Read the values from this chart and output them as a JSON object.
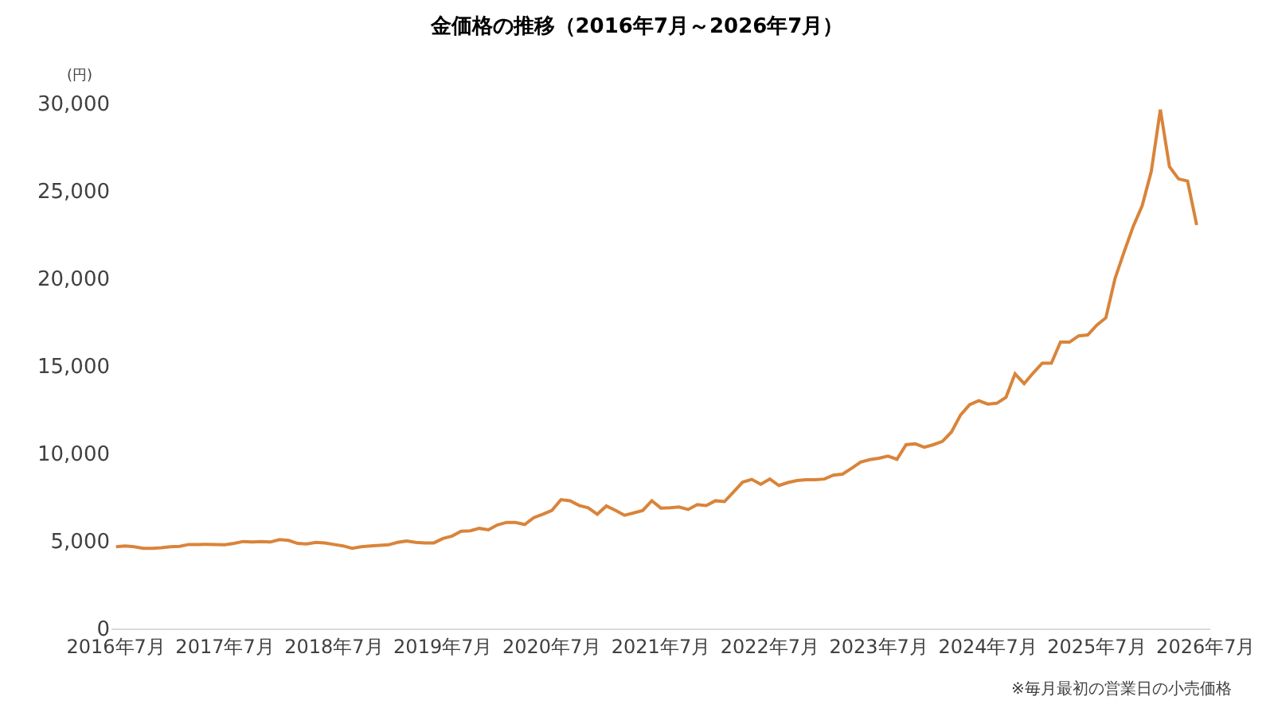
{
  "chart_data": {
    "type": "line",
    "title": "金価格の推移（2016年7月～2026年7月）",
    "ylabel": "(円)",
    "annotations": [
      "※毎月最初の営業日の小売価格"
    ],
    "categories": [
      "2016年7月",
      null,
      null,
      null,
      null,
      null,
      null,
      null,
      null,
      null,
      null,
      null,
      "2017年7月",
      null,
      null,
      null,
      null,
      null,
      null,
      null,
      null,
      null,
      null,
      null,
      "2018年7月",
      null,
      null,
      null,
      null,
      null,
      null,
      null,
      null,
      null,
      null,
      null,
      "2019年7月",
      null,
      null,
      null,
      null,
      null,
      null,
      null,
      null,
      null,
      null,
      null,
      "2020年7月",
      null,
      null,
      null,
      null,
      null,
      null,
      null,
      null,
      null,
      null,
      null,
      "2021年7月",
      null,
      null,
      null,
      null,
      null,
      null,
      null,
      null,
      null,
      null,
      null,
      "2022年7月",
      null,
      null,
      null,
      null,
      null,
      null,
      null,
      null,
      null,
      null,
      null,
      "2023年7月",
      null,
      null,
      null,
      null,
      null,
      null,
      null,
      null,
      null,
      null,
      null,
      "2024年7月",
      null,
      null,
      null,
      null,
      null,
      null,
      null,
      null,
      null,
      null,
      null,
      "2025年7月",
      null,
      null,
      null,
      null,
      null,
      null,
      null,
      null,
      null,
      null,
      null,
      "2026年7月"
    ],
    "series": [
      {
        "color": "#d9843a",
        "values": [
          4670,
          4720,
          4670,
          4580,
          4580,
          4610,
          4670,
          4690,
          4800,
          4800,
          4810,
          4800,
          4780,
          4860,
          4970,
          4940,
          4970,
          4940,
          5080,
          5030,
          4860,
          4830,
          4920,
          4890,
          4800,
          4720,
          4580,
          4670,
          4720,
          4750,
          4780,
          4920,
          5000,
          4920,
          4890,
          4890,
          5140,
          5280,
          5560,
          5580,
          5720,
          5640,
          5920,
          6060,
          6060,
          5940,
          6330,
          6530,
          6750,
          7360,
          7300,
          7030,
          6890,
          6530,
          7000,
          6750,
          6470,
          6600,
          6740,
          7300,
          6880,
          6900,
          6940,
          6800,
          7080,
          7020,
          7300,
          7250,
          7800,
          8360,
          8520,
          8240,
          8540,
          8170,
          8340,
          8450,
          8500,
          8500,
          8540,
          8760,
          8820,
          9150,
          9510,
          9650,
          9730,
          9850,
          9670,
          10500,
          10550,
          10360,
          10500,
          10690,
          11230,
          12200,
          12790,
          13020,
          12820,
          12870,
          13210,
          14550,
          13990,
          14600,
          15160,
          15160,
          16360,
          16360,
          16720,
          16770,
          17330,
          17750,
          19980,
          21510,
          22960,
          24160,
          26110,
          29650,
          26390,
          25690,
          25560,
          23050,
          null
        ]
      }
    ],
    "ylim": [
      0,
      30000
    ],
    "yticks": [
      {
        "value": 0,
        "label": "0"
      },
      {
        "value": 5000,
        "label": "5,000"
      },
      {
        "value": 10000,
        "label": "10,000"
      },
      {
        "value": 15000,
        "label": "15,000"
      },
      {
        "value": 20000,
        "label": "20,000"
      },
      {
        "value": 25000,
        "label": "25,000"
      },
      {
        "value": 30000,
        "label": "30,000"
      }
    ],
    "grid": false,
    "legend": false,
    "marker": "none",
    "line_style": "solid"
  }
}
